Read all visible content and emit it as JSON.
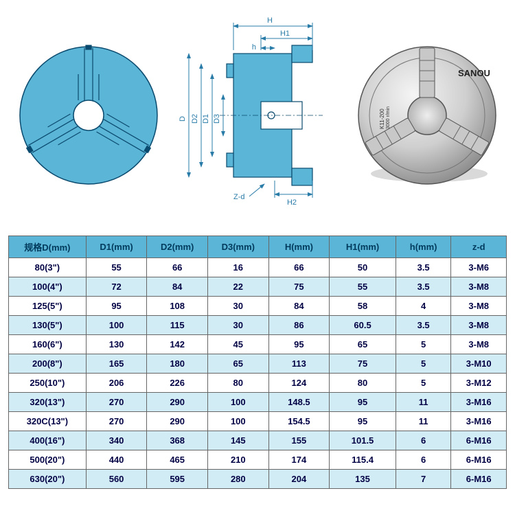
{
  "colors": {
    "diagram_fill": "#5bb5d7",
    "diagram_stroke": "#0a4a6e",
    "dim_color": "#2a7ca8",
    "header_bg": "#5bb5d7",
    "row_alt_bg": "#d2ecf5",
    "row_bg": "#ffffff",
    "border": "#666666",
    "text": "#003a5c"
  },
  "diagram1": {
    "type": "front-view-circle",
    "radius": 100,
    "inner_radius": 18,
    "jaw_count": 3,
    "jaw_angle_offset": 90
  },
  "diagram2": {
    "type": "section-view",
    "labels": {
      "H": "H",
      "H1": "H1",
      "h": "h",
      "D": "D",
      "D1": "D1",
      "D2": "D2",
      "D3": "D3",
      "Zd": "Z-d",
      "H2": "H2"
    }
  },
  "photo": {
    "brand": "SANOU",
    "model_text": "K11-200",
    "rpm_text": "3000 r/min"
  },
  "table": {
    "columns": [
      "规格D(mm)",
      "D1(mm)",
      "D2(mm)",
      "D3(mm)",
      "H(mm)",
      "H1(mm)",
      "h(mm)",
      "z-d"
    ],
    "col_widths": [
      "14%",
      "11%",
      "11%",
      "11%",
      "11%",
      "12%",
      "10%",
      "10%"
    ],
    "rows": [
      [
        "80(3\")",
        "55",
        "66",
        "16",
        "66",
        "50",
        "3.5",
        "3-M6"
      ],
      [
        "100(4\")",
        "72",
        "84",
        "22",
        "75",
        "55",
        "3.5",
        "3-M8"
      ],
      [
        "125(5\")",
        "95",
        "108",
        "30",
        "84",
        "58",
        "4",
        "3-M8"
      ],
      [
        "130(5\")",
        "100",
        "115",
        "30",
        "86",
        "60.5",
        "3.5",
        "3-M8"
      ],
      [
        "160(6\")",
        "130",
        "142",
        "45",
        "95",
        "65",
        "5",
        "3-M8"
      ],
      [
        "200(8\")",
        "165",
        "180",
        "65",
        "113",
        "75",
        "5",
        "3-M10"
      ],
      [
        "250(10\")",
        "206",
        "226",
        "80",
        "124",
        "80",
        "5",
        "3-M12"
      ],
      [
        "320(13\")",
        "270",
        "290",
        "100",
        "148.5",
        "95",
        "11",
        "3-M16"
      ],
      [
        "320C(13\")",
        "270",
        "290",
        "100",
        "154.5",
        "95",
        "11",
        "3-M16"
      ],
      [
        "400(16\")",
        "340",
        "368",
        "145",
        "155",
        "101.5",
        "6",
        "6-M16"
      ],
      [
        "500(20\")",
        "440",
        "465",
        "210",
        "174",
        "115.4",
        "6",
        "6-M16"
      ],
      [
        "630(20\")",
        "560",
        "595",
        "280",
        "204",
        "135",
        "7",
        "6-M16"
      ]
    ]
  }
}
